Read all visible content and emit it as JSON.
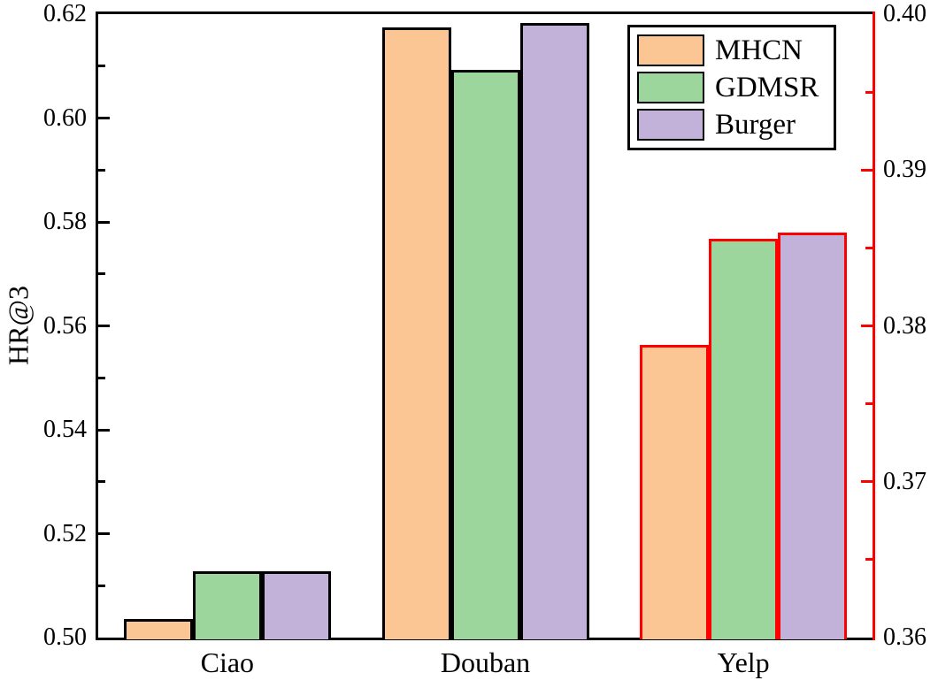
{
  "figure": {
    "ylabel_left": "HR@3"
  },
  "chart_data": {
    "type": "bar",
    "title": "",
    "xlabel": "",
    "ylabel": "HR@3",
    "grid": false,
    "legend_position": "upper right inside plot",
    "categories": [
      "Ciao",
      "Douban",
      "Yelp"
    ],
    "category_axes": [
      "left",
      "left",
      "right"
    ],
    "series": [
      {
        "name": "MHCN",
        "color": "#FBC693",
        "values": [
          0.5035,
          0.6175,
          0.3788
        ]
      },
      {
        "name": "GDMSR",
        "color": "#9CD69C",
        "values": [
          0.5127,
          0.6093,
          0.3856
        ]
      },
      {
        "name": "Burger",
        "color": "#C2B1D9",
        "values": [
          0.5127,
          0.6183,
          0.386
        ]
      }
    ],
    "axes": {
      "left": {
        "label": "HR@3",
        "color": "#000000",
        "min": 0.5,
        "max": 0.62,
        "major_step": 0.02,
        "minor_step": 0.01,
        "tick_labels": [
          "0.50",
          "0.52",
          "0.54",
          "0.56",
          "0.58",
          "0.60",
          "0.62"
        ]
      },
      "right": {
        "label": "",
        "color": "#FF0000",
        "min": 0.36,
        "max": 0.4,
        "major_step": 0.01,
        "minor_step": 0.005,
        "tick_labels": [
          "0.36",
          "0.37",
          "0.38",
          "0.39",
          "0.40"
        ]
      }
    }
  }
}
